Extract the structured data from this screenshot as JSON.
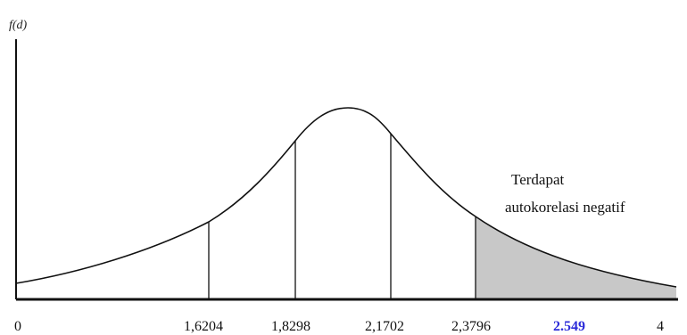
{
  "diagram": {
    "y_axis_label": "f(d)",
    "annotation": [
      "Terdapat",
      "autokorelasi negatif"
    ],
    "tick_labels": [
      "0",
      "1,6204",
      "1,8298",
      "2,1702",
      "2,3796",
      "2.549",
      "4"
    ],
    "colors": {
      "line": "#111111",
      "shade": "#c8c8c8",
      "highlight_tick": "#2b2bd9"
    }
  }
}
